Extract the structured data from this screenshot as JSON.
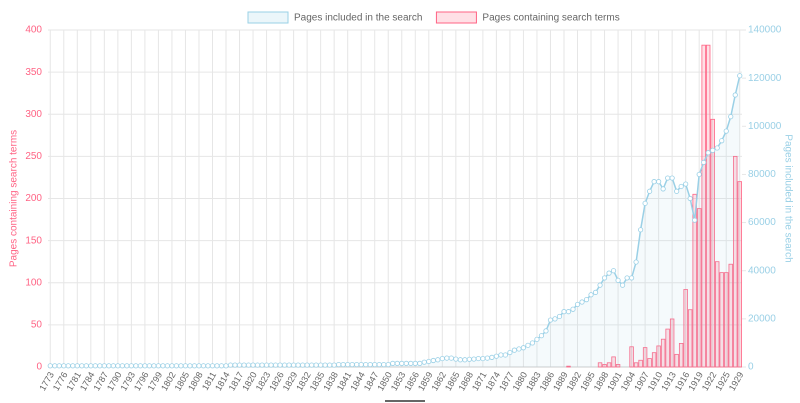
{
  "chart_data": {
    "type": "bar",
    "categories": [
      "1773",
      null,
      null,
      "1776",
      null,
      null,
      "1781",
      null,
      null,
      "1784",
      null,
      null,
      "1787",
      null,
      null,
      "1790",
      null,
      null,
      "1793",
      null,
      null,
      "1796",
      null,
      null,
      "1799",
      null,
      null,
      "1802",
      null,
      null,
      "1805",
      null,
      null,
      "1808",
      null,
      null,
      "1811",
      null,
      null,
      "1814",
      null,
      null,
      "1817",
      null,
      null,
      "1820",
      null,
      null,
      "1823",
      null,
      null,
      "1826",
      null,
      null,
      "1829",
      null,
      null,
      "1832",
      null,
      null,
      "1835",
      null,
      null,
      "1838",
      null,
      null,
      "1841",
      null,
      null,
      "1844",
      null,
      null,
      "1847",
      null,
      null,
      "1850",
      null,
      null,
      "1853",
      null,
      null,
      "1856",
      null,
      null,
      "1859",
      null,
      null,
      "1862",
      null,
      null,
      "1865",
      null,
      null,
      "1868",
      null,
      null,
      "1871",
      null,
      null,
      "1874",
      null,
      null,
      "1877",
      null,
      null,
      "1880",
      null,
      null,
      "1883",
      null,
      null,
      "1886",
      null,
      null,
      "1889",
      null,
      null,
      "1892",
      null,
      null,
      "1895",
      null,
      null,
      "1898",
      null,
      null,
      "1901",
      null,
      null,
      "1904",
      null,
      null,
      "1907",
      null,
      null,
      "1910",
      null,
      null,
      "1913",
      null,
      null,
      "1916",
      null,
      null,
      "1919",
      null,
      null,
      "1922",
      null,
      null,
      "1925",
      null,
      null,
      "1929"
    ],
    "series": [
      {
        "name": "Pages included in the search",
        "type": "line",
        "axis": "y2",
        "color": "#9ad0e6",
        "values": [
          500,
          500,
          500,
          500,
          500,
          500,
          500,
          500,
          500,
          500,
          500,
          500,
          500,
          500,
          500,
          500,
          500,
          500,
          500,
          500,
          500,
          500,
          500,
          500,
          500,
          500,
          500,
          500,
          500,
          500,
          500,
          500,
          500,
          500,
          500,
          500,
          500,
          500,
          500,
          500,
          800,
          800,
          800,
          800,
          800,
          800,
          800,
          800,
          800,
          800,
          800,
          800,
          800,
          800,
          800,
          800,
          800,
          800,
          800,
          800,
          800,
          800,
          800,
          800,
          1000,
          1000,
          1000,
          1000,
          1000,
          1000,
          1000,
          1000,
          1000,
          1000,
          1000,
          1000,
          1500,
          1500,
          1500,
          1500,
          1500,
          1500,
          1500,
          2000,
          2300,
          2700,
          3000,
          3500,
          3700,
          3700,
          3300,
          3000,
          3000,
          3200,
          3300,
          3500,
          3500,
          3700,
          4000,
          4500,
          5000,
          5000,
          6000,
          7000,
          7500,
          8000,
          9000,
          10000,
          11500,
          13000,
          15000,
          19500,
          20000,
          21000,
          23000,
          23000,
          24000,
          26000,
          27000,
          28000,
          30000,
          31000,
          34000,
          37000,
          39000,
          40000,
          36000,
          34000,
          37000,
          37000,
          43600,
          57000,
          68000,
          73000,
          77000,
          77000,
          74000,
          78500,
          78500,
          73000,
          75000,
          76000,
          70000,
          61000,
          80000,
          85000,
          89000,
          90000,
          91000,
          94000,
          98000,
          104000,
          113000,
          121000
        ]
      },
      {
        "name": "Pages containing search terms",
        "type": "bar",
        "axis": "y",
        "color": "#ff6384",
        "values": [
          0,
          0,
          0,
          0,
          0,
          0,
          0,
          0,
          0,
          0,
          0,
          0,
          0,
          0,
          0,
          0,
          0,
          0,
          0,
          0,
          0,
          0,
          0,
          0,
          0,
          0,
          0,
          0,
          0,
          0,
          0,
          0,
          0,
          0,
          0,
          0,
          0,
          0,
          0,
          0,
          0,
          0,
          0,
          0,
          0,
          0,
          0,
          0,
          0,
          0,
          0,
          0,
          0,
          0,
          0,
          0,
          0,
          0,
          0,
          0,
          0,
          0,
          0,
          0,
          0,
          0,
          0,
          0,
          0,
          0,
          0,
          0,
          0,
          0,
          0,
          0,
          0,
          0,
          0,
          0,
          0,
          0,
          0,
          0,
          0,
          0,
          0,
          0,
          0,
          0,
          0,
          0,
          0,
          0,
          0,
          0,
          0,
          0,
          0,
          0,
          0,
          0,
          0,
          0,
          0,
          0,
          0,
          0,
          0,
          0,
          0,
          0,
          0,
          0,
          0,
          1,
          0,
          0,
          0,
          0,
          0,
          0,
          5,
          3,
          5,
          12,
          3,
          0,
          0,
          24,
          5,
          8,
          23,
          10,
          17,
          25,
          33,
          45,
          57,
          15,
          28,
          92,
          68,
          205,
          188,
          382,
          382,
          294,
          125,
          112,
          112,
          122,
          250,
          220
        ]
      }
    ],
    "ylabel": "Pages containing search terms",
    "y2label": "Pages included in the search",
    "ylim": [
      0,
      400
    ],
    "yticks": [
      0,
      50,
      100,
      150,
      200,
      250,
      300,
      350,
      400
    ],
    "y2lim": [
      0,
      140000
    ],
    "y2ticks": [
      0,
      20000,
      40000,
      60000,
      80000,
      100000,
      120000,
      140000
    ],
    "grid": true,
    "legend": "top"
  }
}
